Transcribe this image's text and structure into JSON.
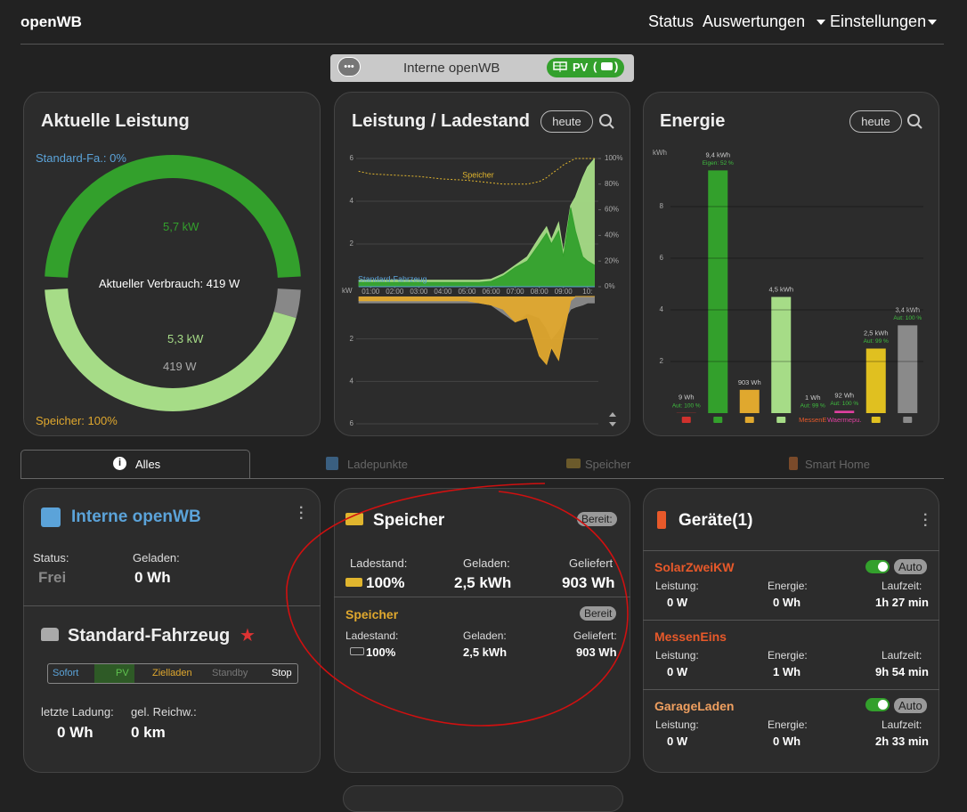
{
  "navbar": {
    "brand": "openWB",
    "links": [
      "Status",
      "Auswertungen",
      "Einstellungen"
    ]
  },
  "chargepoint_bar": {
    "name": "Interne openWB",
    "mode": "PV",
    "bracket_open": "(",
    "bracket_close": ")"
  },
  "power_card": {
    "title": "Aktuelle Leistung",
    "vehicle_soc": "Standard-Fa.: 0%",
    "pv": "5,7 kW",
    "consumption": "Aktueller Verbrauch: 419 W",
    "grid": "5,3 kW",
    "house": "419 W",
    "battery_soc": "Speicher: 100%",
    "arcs_top": [
      5.7
    ],
    "arcs_top_colors": [
      "#33a02c"
    ],
    "arcs_bottom": [
      0.419,
      5.3
    ],
    "arcs_bottom_colors": [
      "#888888",
      "#a6dc87"
    ]
  },
  "power_chart": {
    "title": "Leistung / Ladestand",
    "button": "heute",
    "unit": "kW",
    "x": [
      0.5,
      1,
      2,
      3,
      4,
      5,
      5.5,
      6,
      6.5,
      7,
      7.5,
      8,
      8.3,
      8.5,
      8.8,
      9,
      9.3,
      9.5,
      9.8,
      10,
      10.3
    ],
    "xlim": [
      0.4,
      10.45
    ],
    "xticks": [
      {
        "value": 1,
        "label": "01:00"
      },
      {
        "value": 2,
        "label": "02:00"
      },
      {
        "value": 3,
        "label": "03:00"
      },
      {
        "value": 4,
        "label": "04:00"
      },
      {
        "value": 5,
        "label": "05:00"
      },
      {
        "value": 6,
        "label": "06:00"
      },
      {
        "value": 7,
        "label": "07:00"
      },
      {
        "value": 8,
        "label": "08:00"
      },
      {
        "value": 9,
        "label": "09:00"
      },
      {
        "value": 10,
        "label": "10:"
      }
    ],
    "ylim": [
      0,
      6
    ],
    "yticks": [
      2,
      4,
      6
    ],
    "yticks_lower": [
      2,
      4,
      6
    ],
    "y2lim": [
      0,
      100
    ],
    "y2ticks": [
      {
        "value": 0,
        "label": "0%"
      },
      {
        "value": 20,
        "label": "20%"
      },
      {
        "value": 40,
        "label": "40%"
      },
      {
        "value": 60,
        "label": "60%"
      },
      {
        "value": 80,
        "label": "80%"
      },
      {
        "value": 100,
        "label": "100%"
      }
    ],
    "series": [
      {
        "color": "#a6dc87",
        "side": "upper",
        "values": [
          0.3,
          0.3,
          0.3,
          0.3,
          0.3,
          0.3,
          0.3,
          0.35,
          0.6,
          1.0,
          1.4,
          2.3,
          2.8,
          2.2,
          3.0,
          1.6,
          3.8,
          4.2,
          5.1,
          5.6,
          6.0
        ]
      },
      {
        "color": "#33a02c",
        "side": "upper",
        "values": [
          0.2,
          0.2,
          0.2,
          0.2,
          0.2,
          0.2,
          0.2,
          0.25,
          0.5,
          0.9,
          1.2,
          2.0,
          2.5,
          2.0,
          2.6,
          1.4,
          3.7,
          2.6,
          1.4,
          1.2,
          1.0
        ]
      },
      {
        "color": "#8a8a8a",
        "side": "lower",
        "values": [
          0.3,
          0.3,
          0.3,
          0.3,
          0.3,
          0.3,
          0.3,
          0.4,
          0.8,
          1.2,
          0.8,
          1.0,
          1.5,
          2.0,
          1.6,
          1.2,
          0.6,
          0.5,
          0.4,
          0.3,
          0.3
        ]
      },
      {
        "color": "#e0a82e",
        "side": "lower",
        "values": [
          0.2,
          0.2,
          0.2,
          0.2,
          0.2,
          0.2,
          0.3,
          0.4,
          0.6,
          1.2,
          1.0,
          2.8,
          3.2,
          2.4,
          3.0,
          1.8,
          0.2,
          0,
          0,
          0,
          0
        ]
      },
      {
        "color": "#e0b52e",
        "axis": "y2",
        "dotted": true,
        "values": [
          90,
          88,
          87,
          86,
          84,
          83,
          82,
          81,
          80,
          80,
          80,
          82,
          85,
          88,
          92,
          95,
          98,
          100,
          100,
          100,
          100
        ]
      },
      {
        "color": "#5ba3d9",
        "axis": "y2",
        "values": [
          0,
          0,
          0,
          0,
          0,
          0,
          0,
          0,
          0,
          0,
          0,
          0,
          0,
          0,
          0,
          0,
          0,
          0,
          0,
          0,
          0
        ]
      }
    ],
    "annotations": {
      "battery": "Speicher",
      "vehicle": "Standard-Fahrzeug"
    }
  },
  "energy_chart": {
    "title": "Energie",
    "button": "heute",
    "unit": "kWh",
    "ylim": [
      0,
      10
    ],
    "yticks": [
      2,
      4,
      6,
      8
    ],
    "categories": [
      null,
      null,
      null,
      null,
      "MessenE",
      "Waermepu.",
      null,
      null
    ],
    "values": [
      0.009,
      9.4,
      0.903,
      4.5,
      0.001,
      0.092,
      2.5,
      3.4
    ],
    "value_labels": [
      "9 Wh",
      "9,4 kWh",
      "903 Wh",
      "4,5 kWh",
      "1 Wh",
      "92 Wh",
      "2,5 kWh",
      "3,4 kWh"
    ],
    "sub_labels": [
      "Aut: 100 %",
      "Eigen: 52 %",
      null,
      null,
      "Aut: 99 %",
      "Aut: 100 %",
      "Aut: 99 %",
      "Aut: 100 %"
    ],
    "colors": [
      "#d0312d",
      "#33a02c",
      "#e0a82e",
      "#a6dc87",
      "#e8592a",
      "#e040a0",
      "#e0c020",
      "#8a8a8a"
    ]
  },
  "tabs": [
    "Alles",
    "Ladepunkte",
    "Speicher",
    "Smart Home"
  ],
  "chargepoint_card": {
    "title": "Interne openWB",
    "status_label": "Status:",
    "status": "Frei",
    "charged_label": "Geladen:",
    "charged": "0 Wh"
  },
  "vehicle_card": {
    "title": "Standard-Fahrzeug",
    "modes": [
      "Sofort",
      "PV",
      "Zielladen",
      "Standby",
      "Stop"
    ],
    "last_label": "letzte Ladung:",
    "last": "0 Wh",
    "range_label": "gel. Reichw.:",
    "range": "0 km"
  },
  "battery_card": {
    "title": "Speicher",
    "status": "Bereit:",
    "labels": [
      "Ladestand:",
      "Geladen:",
      "Geliefert"
    ],
    "values": [
      "100%",
      "2,5 kWh",
      "903 Wh"
    ],
    "sub": {
      "name": "Speicher",
      "status": "Bereit",
      "labels": [
        "Ladestand:",
        "Geladen:",
        "Geliefert:"
      ],
      "values": [
        "100%",
        "2,5 kWh",
        "903 Wh"
      ]
    }
  },
  "devices_card": {
    "title": "Geräte(1)",
    "devices": [
      {
        "name": "SolarZweiKW",
        "mode": "Auto",
        "labels": [
          "Leistung:",
          "Energie:",
          "Laufzeit:"
        ],
        "values": [
          "0 W",
          "0 Wh",
          "1h 27 min"
        ]
      },
      {
        "name": "MessenEins",
        "labels": [
          "Leistung:",
          "Energie:",
          "Laufzeit:"
        ],
        "values": [
          "0 W",
          "1 Wh",
          "9h 54 min"
        ]
      },
      {
        "name": "GarageLaden",
        "mode": "Auto",
        "labels": [
          "Leistung:",
          "Energie:",
          "Laufzeit:"
        ],
        "values": [
          "0 W",
          "0 Wh",
          "2h 33 min"
        ]
      }
    ]
  }
}
